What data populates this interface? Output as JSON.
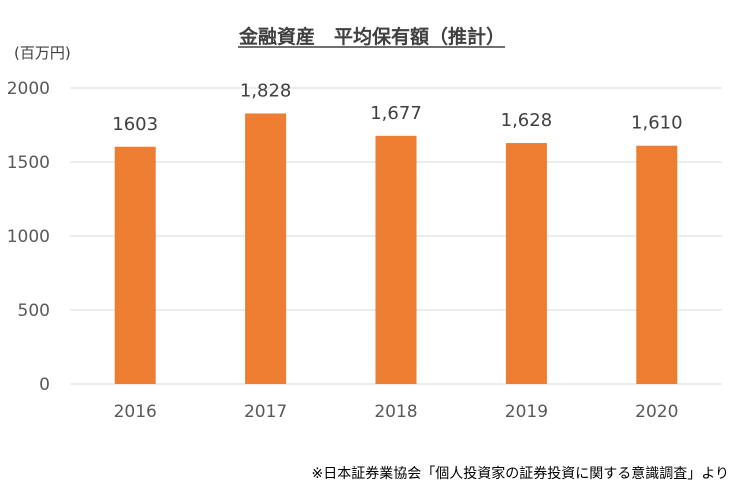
{
  "chart_data": {
    "type": "bar",
    "title": "金融資産　平均保有額（推計）",
    "y_unit": "(百万円)",
    "categories": [
      "2016",
      "2017",
      "2018",
      "2019",
      "2020"
    ],
    "values": [
      1603,
      1828,
      1677,
      1628,
      1610
    ],
    "data_labels": [
      "1603",
      "1,828",
      "1,677",
      "1,628",
      "1,610"
    ],
    "yticks": [
      0,
      500,
      1000,
      1500,
      2000
    ],
    "ylim": [
      0,
      2000
    ],
    "grid": true,
    "legend": "none",
    "bar_color": "#ED7D31",
    "gridline_color": "#D9D9D9",
    "source": "※日本証券業協会「個人投資家の証券投資に関する意識調査」より"
  }
}
